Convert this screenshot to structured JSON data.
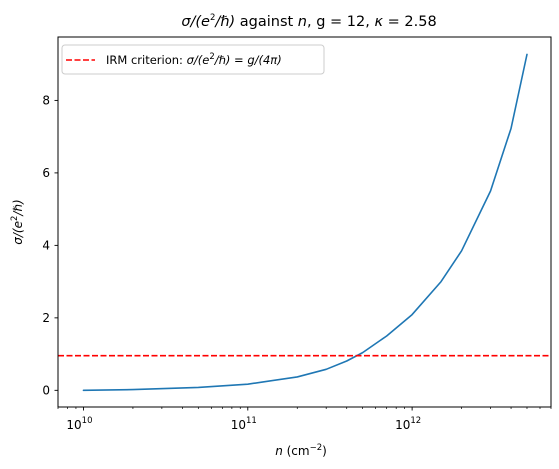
{
  "chart_data": {
    "type": "line",
    "title": "σ/(e²/ℏ) against n, g = 12, κ = 2.58",
    "title_parts": {
      "sigma_lead": "σ/(e",
      "sigma_sup": "2",
      "sigma_tail": "/ℏ)",
      "mid": " against ",
      "n": "n",
      "rest": ", g = 12, ",
      "kappa": "κ",
      "kappa_rest": " = 2.58"
    },
    "xlabel": "n (cm⁻²)",
    "xlabel_parts": {
      "n": "n",
      "lead": " (cm",
      "sup": "−2",
      "tail": ")"
    },
    "ylabel": "σ/(e²/ℏ)",
    "ylabel_parts": {
      "lead": "σ/(e",
      "sup": "2",
      "tail": "/ℏ)"
    },
    "x_scale": "log",
    "xlim": [
      7000000000.0,
      7000000000000.0
    ],
    "ylim": [
      -0.46,
      9.75
    ],
    "x_ticks": [
      {
        "value": 10000000000.0,
        "base": "10",
        "exp": "10"
      },
      {
        "value": 100000000000.0,
        "base": "10",
        "exp": "11"
      },
      {
        "value": 1000000000000.0,
        "base": "10",
        "exp": "12"
      }
    ],
    "y_ticks": [
      0,
      2,
      4,
      6,
      8
    ],
    "grid": false,
    "legend_position": "top-left",
    "series": [
      {
        "name": "",
        "color": "#1f77b4",
        "style": "solid",
        "x": [
          10000000000.0,
          20000000000.0,
          50000000000.0,
          100000000000.0,
          200000000000.0,
          300000000000.0,
          400000000000.0,
          500000000000.0,
          700000000000.0,
          1000000000000.0,
          1500000000000.0,
          2000000000000.0,
          3000000000000.0,
          4000000000000.0,
          5000000000000.0
        ],
        "y": [
          0.0,
          0.02,
          0.08,
          0.17,
          0.37,
          0.58,
          0.81,
          1.04,
          1.5,
          2.09,
          3.0,
          3.85,
          5.5,
          7.23,
          9.27
        ]
      },
      {
        "name": "IRM criterion: σ/(e²/ℏ) = g/(4π)",
        "name_parts": {
          "lead": "IRM criterion: ",
          "sigma": "σ/(e",
          "sup": "2",
          "tail": "/ℏ) = g/(4π)"
        },
        "color": "#ff0000",
        "style": "dashed",
        "type": "hline",
        "y": 0.955
      }
    ]
  }
}
